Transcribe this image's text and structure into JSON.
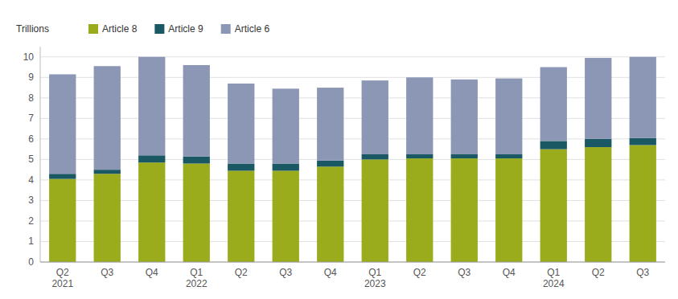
{
  "chart_data": {
    "type": "bar",
    "stacked": true,
    "y_label": "Trillions",
    "categories": [
      "Q2\n2021",
      "Q3",
      "Q4",
      "Q1\n2022",
      "Q2",
      "Q3",
      "Q4",
      "Q1\n2023",
      "Q2",
      "Q3",
      "Q4",
      "Q1\n2024",
      "Q2",
      "Q3"
    ],
    "series": [
      {
        "name": "Article 8",
        "color": "#9aac1c",
        "values": [
          4.05,
          4.3,
          4.85,
          4.8,
          4.45,
          4.45,
          4.65,
          5.0,
          5.05,
          5.05,
          5.05,
          5.5,
          5.6,
          5.7
        ]
      },
      {
        "name": "Article 9",
        "color": "#1a5963",
        "values": [
          0.25,
          0.2,
          0.35,
          0.35,
          0.35,
          0.35,
          0.3,
          0.25,
          0.2,
          0.2,
          0.2,
          0.4,
          0.4,
          0.35
        ]
      },
      {
        "name": "Article 6",
        "color": "#8b97b5",
        "values": [
          4.85,
          5.05,
          4.8,
          4.45,
          3.9,
          3.65,
          3.55,
          3.6,
          3.75,
          3.65,
          3.7,
          3.6,
          3.95,
          3.95
        ]
      }
    ],
    "ylim": [
      0,
      10.5
    ],
    "yticks": [
      0,
      1,
      2,
      3,
      4,
      5,
      6,
      7,
      8,
      9,
      10
    ],
    "grid": true,
    "legend": "top"
  }
}
